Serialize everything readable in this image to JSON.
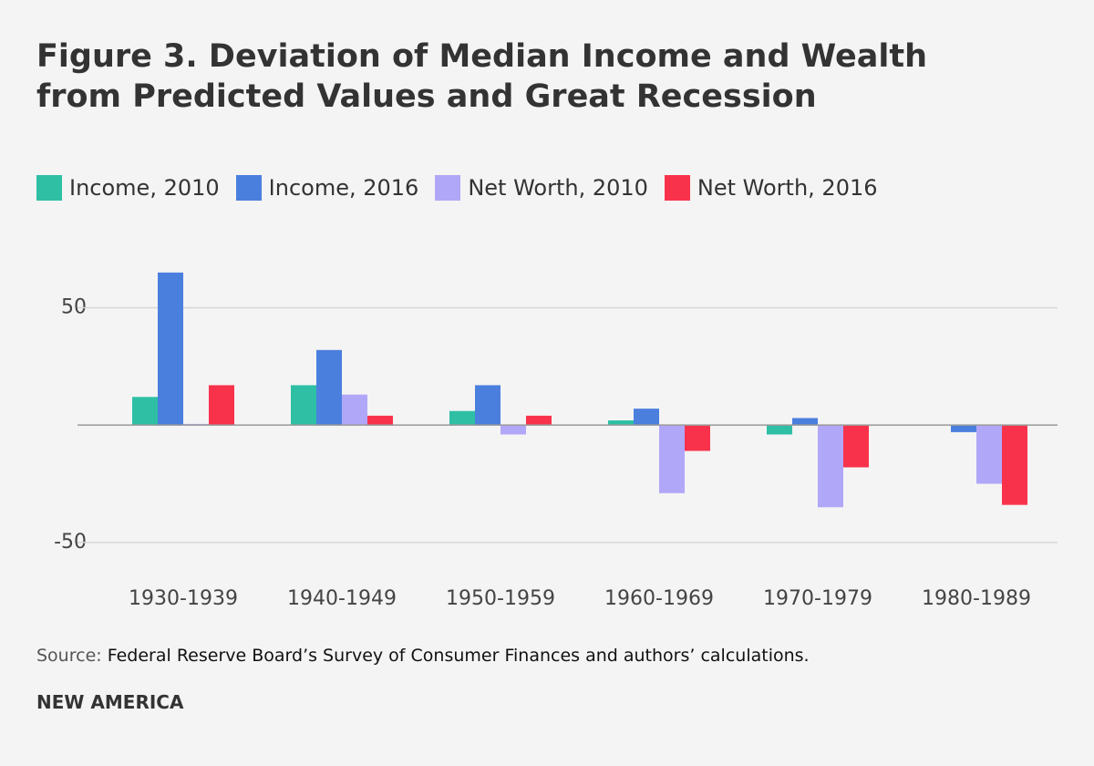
{
  "chart_data": {
    "type": "bar",
    "title": "Figure 3. Deviation of Median Income and Wealth from Predicted Values and Great Recession",
    "categories": [
      "1930-1939",
      "1940-1949",
      "1950-1959",
      "1960-1969",
      "1970-1979",
      "1980-1989"
    ],
    "series": [
      {
        "name": "Income, 2010",
        "color": "#2ebfa5",
        "values": [
          12,
          17,
          6,
          2,
          -4,
          0
        ]
      },
      {
        "name": "Income, 2016",
        "color": "#4a7fde",
        "values": [
          65,
          32,
          17,
          7,
          3,
          -3
        ]
      },
      {
        "name": "Net Worth, 2010",
        "color": "#b1a7f8",
        "values": [
          0.5,
          13,
          -4,
          -29,
          -35,
          -25
        ]
      },
      {
        "name": "Net Worth, 2016",
        "color": "#f9324c",
        "values": [
          17,
          4,
          4,
          -11,
          -18,
          -34
        ]
      }
    ],
    "ylim": [
      -52,
      70
    ],
    "yticks": [
      -50,
      50
    ],
    "grid": true,
    "source_label": "Source:",
    "source": "Federal Reserve Board’s Survey of Consumer Finances and authors’ calculations.",
    "footer": "NEW AMERICA"
  }
}
